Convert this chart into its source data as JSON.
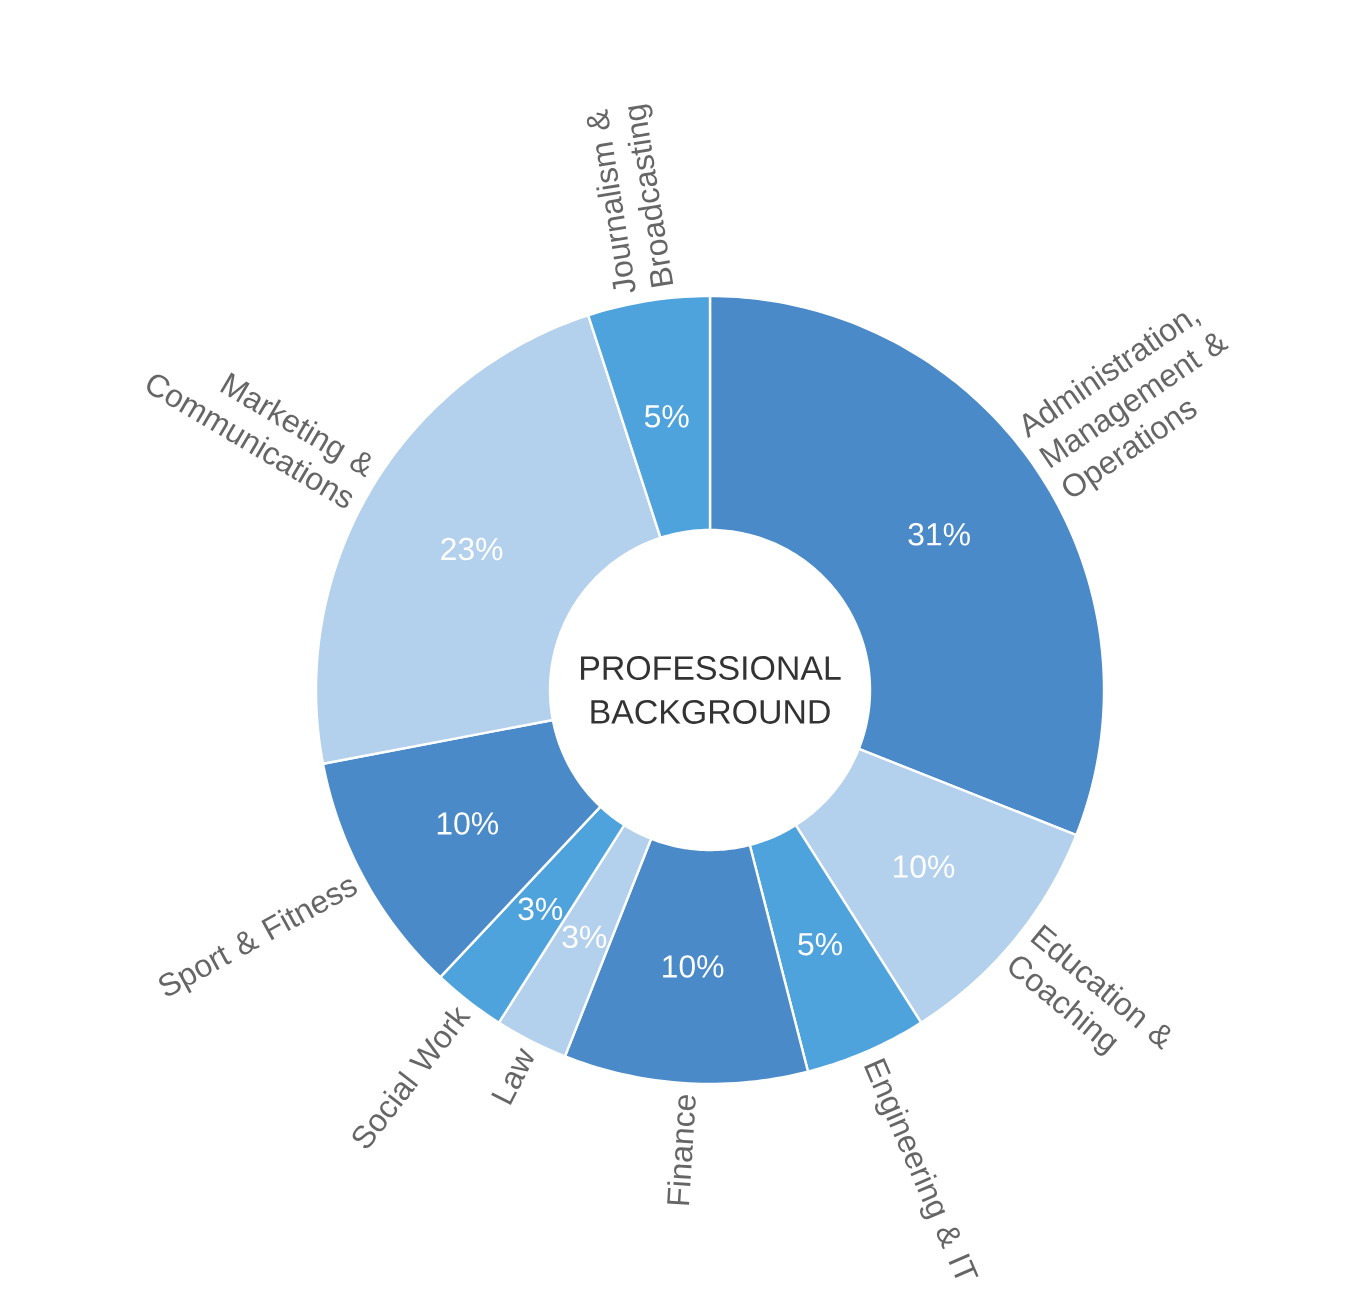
{
  "chart_data": {
    "type": "donut",
    "title": "PROFESSIONAL BACKGROUND",
    "categories": [
      "Administration, Management & Operations",
      "Education & Coaching",
      "Engineering & IT",
      "Finance",
      "Law",
      "Social Work",
      "Sport & Fitness",
      "Marketing & Communications",
      "Journalism & Broadcasting"
    ],
    "values": [
      31,
      10,
      5,
      10,
      3,
      3,
      10,
      23,
      5
    ],
    "colors": [
      "#4a8ac9",
      "#b3d0ec",
      "#4ea3dc",
      "#4a8ac9",
      "#b3d0ec",
      "#4ea3dc",
      "#4a8ac9",
      "#b3d0ec",
      "#4ea3dc"
    ],
    "value_labels": [
      "31%",
      "10%",
      "5%",
      "10%",
      "3%",
      "3%",
      "10%",
      "23%",
      "5%"
    ]
  }
}
